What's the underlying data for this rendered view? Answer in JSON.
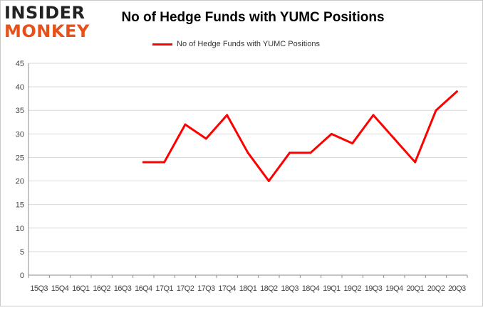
{
  "logo": {
    "top_text": "INSIDER",
    "bottom_text": "MONKEY"
  },
  "colors": {
    "series": "#ff0000",
    "grid": "#d9d9d9",
    "axis": "#888888",
    "logo_orange": "#e8501a"
  },
  "chart_data": {
    "type": "line",
    "title": "No of Hedge Funds with YUMC Positions",
    "xlabel": "",
    "ylabel": "",
    "ylim": [
      0,
      45
    ],
    "yticks": [
      0,
      5,
      10,
      15,
      20,
      25,
      30,
      35,
      40,
      45
    ],
    "grid": true,
    "legend_position": "top-center",
    "categories": [
      "15Q3",
      "15Q4",
      "16Q1",
      "16Q2",
      "16Q3",
      "16Q4",
      "17Q1",
      "17Q2",
      "17Q3",
      "17Q4",
      "18Q1",
      "18Q2",
      "18Q3",
      "18Q4",
      "19Q1",
      "19Q2",
      "19Q3",
      "19Q4",
      "20Q1",
      "20Q2",
      "20Q3"
    ],
    "series": [
      {
        "name": "No of Hedge Funds with YUMC Positions",
        "values": [
          null,
          null,
          null,
          null,
          null,
          24,
          24,
          32,
          29,
          34,
          26,
          20,
          26,
          26,
          30,
          28,
          34,
          29,
          24,
          35,
          39
        ]
      }
    ]
  }
}
